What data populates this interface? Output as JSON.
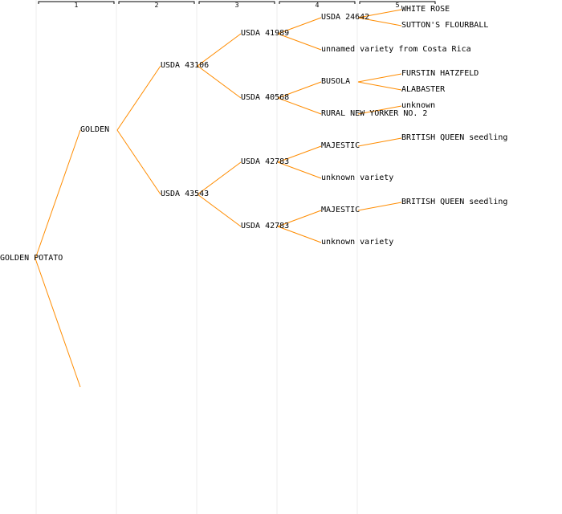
{
  "colors": {
    "background": "#ffffff",
    "link": "#ff8c00",
    "column_line": "#eeeeee",
    "bracket": "#000000",
    "text": "#000000"
  },
  "generations": [
    "1",
    "2",
    "3",
    "4",
    "5"
  ],
  "nodes": [
    {
      "id": "n0",
      "label": "GOLDEN POTATO",
      "gen": 0
    },
    {
      "id": "n1",
      "label": "GOLDEN",
      "gen": 1
    },
    {
      "id": "n1b",
      "label": "",
      "gen": 1
    },
    {
      "id": "n2",
      "label": "USDA 43106",
      "gen": 2
    },
    {
      "id": "n3",
      "label": "USDA 43543",
      "gen": 2
    },
    {
      "id": "n4",
      "label": "USDA 41989",
      "gen": 3
    },
    {
      "id": "n5",
      "label": "USDA 40568",
      "gen": 3
    },
    {
      "id": "n6",
      "label": "USDA 42783",
      "gen": 3
    },
    {
      "id": "n7",
      "label": "USDA 42783",
      "gen": 3
    },
    {
      "id": "n8",
      "label": "USDA 24642",
      "gen": 4
    },
    {
      "id": "n9",
      "label": "unnamed variety from Costa Rica",
      "gen": 4
    },
    {
      "id": "n10",
      "label": "BUSOLA",
      "gen": 4
    },
    {
      "id": "n11",
      "label": "RURAL NEW YORKER NO. 2",
      "gen": 4
    },
    {
      "id": "n12",
      "label": "MAJESTIC",
      "gen": 4
    },
    {
      "id": "n13",
      "label": "unknown variety",
      "gen": 4
    },
    {
      "id": "n14",
      "label": "MAJESTIC",
      "gen": 4
    },
    {
      "id": "n15",
      "label": "unknown variety",
      "gen": 4
    },
    {
      "id": "n16",
      "label": "WHITE ROSE",
      "gen": 5
    },
    {
      "id": "n17",
      "label": "SUTTON'S FLOURBALL",
      "gen": 5
    },
    {
      "id": "n18",
      "label": "FURSTIN HATZFELD",
      "gen": 5
    },
    {
      "id": "n19",
      "label": "ALABASTER",
      "gen": 5
    },
    {
      "id": "n20",
      "label": "unknown",
      "gen": 5
    },
    {
      "id": "n21",
      "label": "BRITISH QUEEN seedling",
      "gen": 5
    },
    {
      "id": "n22",
      "label": "BRITISH QUEEN seedling",
      "gen": 5
    }
  ],
  "links": [
    [
      "n0",
      "n1"
    ],
    [
      "n0",
      "n1b"
    ],
    [
      "n1",
      "n2"
    ],
    [
      "n1",
      "n3"
    ],
    [
      "n2",
      "n4"
    ],
    [
      "n2",
      "n5"
    ],
    [
      "n3",
      "n6"
    ],
    [
      "n3",
      "n7"
    ],
    [
      "n4",
      "n8"
    ],
    [
      "n4",
      "n9"
    ],
    [
      "n5",
      "n10"
    ],
    [
      "n5",
      "n11"
    ],
    [
      "n6",
      "n12"
    ],
    [
      "n6",
      "n13"
    ],
    [
      "n7",
      "n14"
    ],
    [
      "n7",
      "n15"
    ],
    [
      "n8",
      "n16"
    ],
    [
      "n8",
      "n17"
    ],
    [
      "n10",
      "n18"
    ],
    [
      "n10",
      "n19"
    ],
    [
      "n11",
      "n20"
    ],
    [
      "n12",
      "n21"
    ],
    [
      "n14",
      "n22"
    ]
  ]
}
